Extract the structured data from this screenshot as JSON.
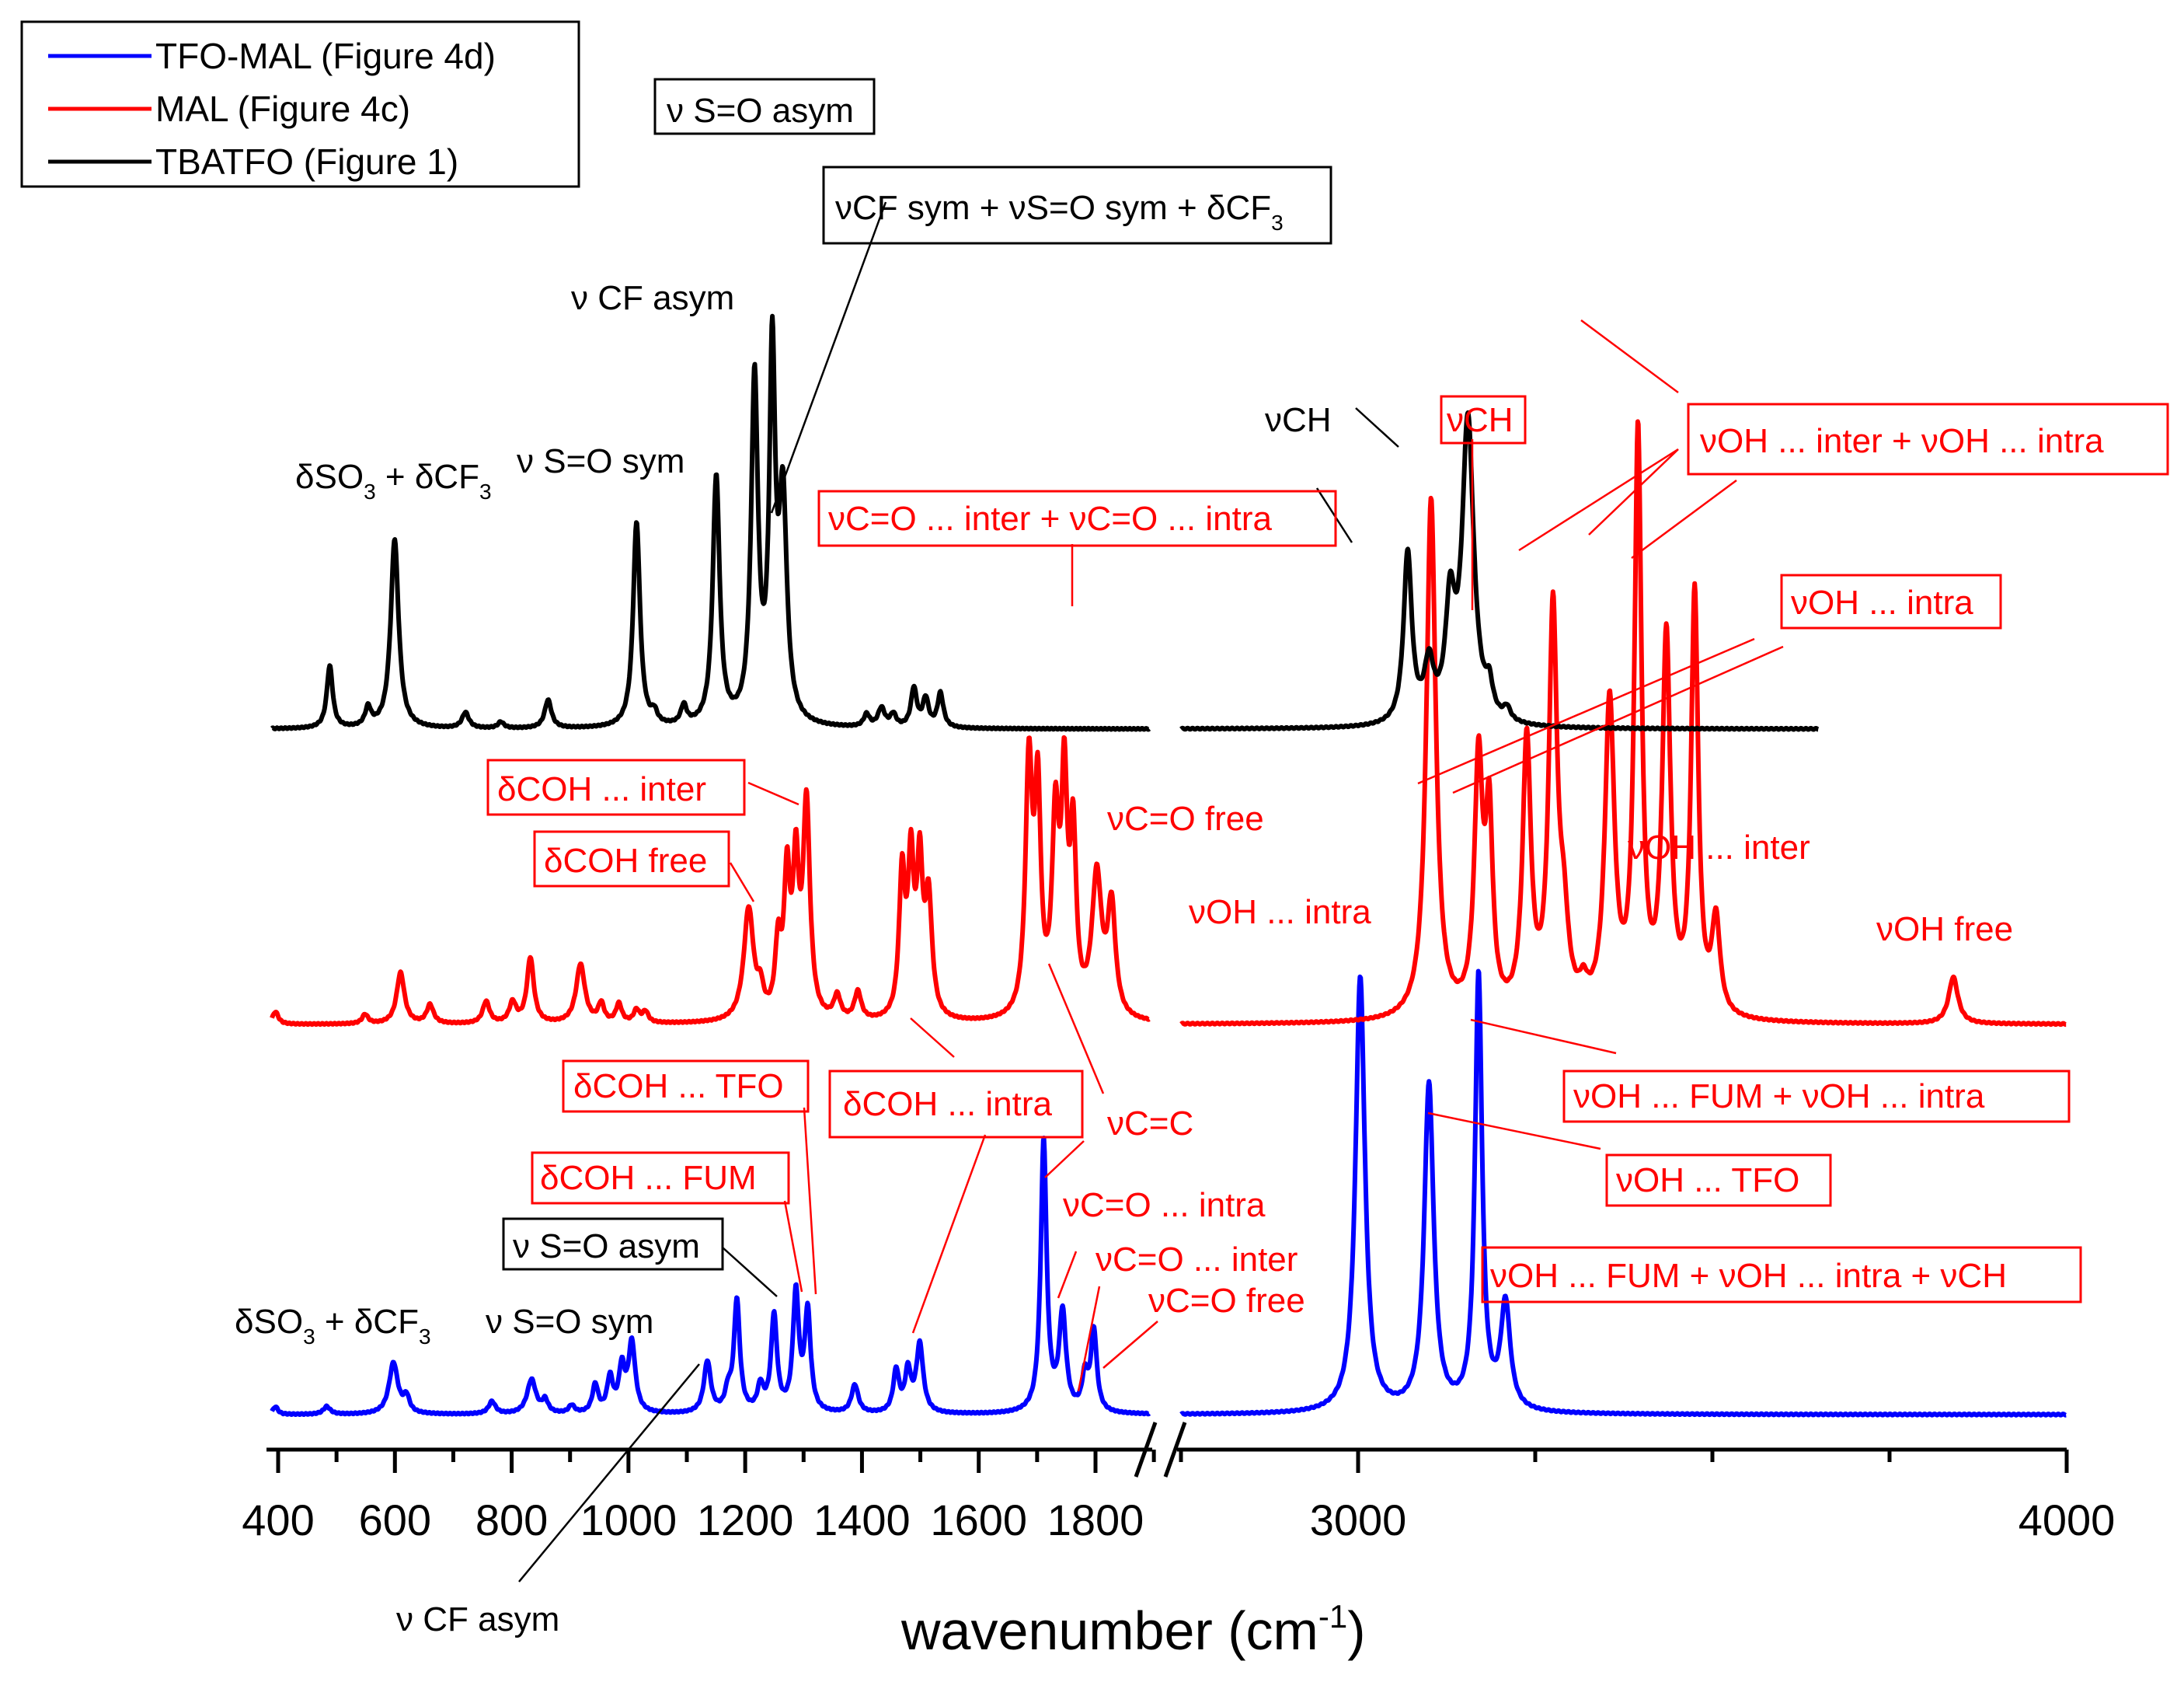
{
  "chart_data": {
    "type": "line",
    "title": "",
    "xlabel": "wavenumber (cm",
    "xlabel_sup": "-1",
    "xlabel_close": ")",
    "ylabel": "",
    "x_segments": [
      {
        "xlim": [
          400,
          1900
        ],
        "ticks": [
          400,
          600,
          800,
          1000,
          1200,
          1400,
          1600,
          1800
        ],
        "tick_labels": [
          "400",
          "600",
          "800",
          "1000",
          "1200",
          "1400",
          "1600",
          "1800"
        ]
      },
      {
        "xlim": [
          2750,
          4000
        ],
        "ticks": [
          3000,
          4000
        ],
        "tick_labels": [
          "3000",
          "4000"
        ]
      }
    ],
    "colors": {
      "TFO-MAL": "#0000ff",
      "MAL": "#ff0000",
      "TBATFO": "#000000"
    },
    "legend": [
      "TFO-MAL (Figure 4d)",
      "MAL (Figure 4c)",
      "TBATFO (Figure 1)"
    ],
    "series": [
      {
        "name": "TFO-MAL (Figure 4d)",
        "color": "#0000ff",
        "baseline": 0.0,
        "segments": [
          {
            "range": [
              412,
              1900
            ],
            "peaks": [
              [
                418,
                0.05,
                5
              ],
              [
                505,
                0.05,
                7
              ],
              [
                618,
                0.33,
                9
              ],
              [
                640,
                0.1,
                6
              ],
              [
                785,
                0.08,
                7
              ],
              [
                852,
                0.22,
                9
              ],
              [
                875,
                0.08,
                6
              ],
              [
                920,
                0.05,
                6
              ],
              [
                960,
                0.18,
                6
              ],
              [
                985,
                0.22,
                6
              ],
              [
                1005,
                0.28,
                6
              ],
              [
                1022,
                0.45,
                7
              ],
              [
                1150,
                0.33,
                7
              ],
              [
                1185,
                0.12,
                6
              ],
              [
                1200,
                0.72,
                6
              ],
              [
                1240,
                0.16,
                6
              ],
              [
                1263,
                0.62,
                6
              ],
              [
                1300,
                0.76,
                6
              ],
              [
                1320,
                0.64,
                6
              ],
              [
                1400,
                0.18,
                7
              ],
              [
                1470,
                0.27,
                6
              ],
              [
                1490,
                0.26,
                6
              ],
              [
                1510,
                0.44,
                7
              ],
              [
                1720,
                1.75,
                6
              ],
              [
                1752,
                0.63,
                7
              ],
              [
                1790,
                0.22,
                6
              ],
              [
                1805,
                0.52,
                6
              ]
            ]
          },
          {
            "range": [
              2750,
              4000
            ],
            "peaks": [
              [
                3003,
                2.8,
                8
              ],
              [
                3100,
                2.1,
                8
              ],
              [
                3170,
                2.8,
                6
              ],
              [
                3208,
                0.68,
                8
              ]
            ]
          }
        ]
      },
      {
        "name": "MAL (Figure 4c)",
        "color": "#ff0000",
        "baseline": 0.0,
        "segments": [
          {
            "range": [
              412,
              1900
            ],
            "peaks": [
              [
                418,
                0.08,
                6
              ],
              [
                570,
                0.06,
                6
              ],
              [
                630,
                0.33,
                8
              ],
              [
                680,
                0.12,
                7
              ],
              [
                775,
                0.14,
                7
              ],
              [
                820,
                0.13,
                7
              ],
              [
                850,
                0.42,
                7
              ],
              [
                935,
                0.38,
                9
              ],
              [
                970,
                0.12,
                6
              ],
              [
                1000,
                0.12,
                6
              ],
              [
                1030,
                0.08,
                6
              ],
              [
                1045,
                0.07,
                6
              ],
              [
                1220,
                0.72,
                10
              ],
              [
                1240,
                0.15,
                6
              ],
              [
                1270,
                0.45,
                6
              ],
              [
                1285,
                0.87,
                6
              ],
              [
                1300,
                0.92,
                6
              ],
              [
                1318,
                1.37,
                7
              ],
              [
                1370,
                0.15,
                7
              ],
              [
                1405,
                0.18,
                7
              ],
              [
                1480,
                0.9,
                6
              ],
              [
                1495,
                0.95,
                6
              ],
              [
                1510,
                0.92,
                6
              ],
              [
                1525,
                0.74,
                7
              ],
              [
                1695,
                1.6,
                7
              ],
              [
                1710,
                1.35,
                6
              ],
              [
                1740,
                1.2,
                7
              ],
              [
                1755,
                1.4,
                6
              ],
              [
                1770,
                1.1,
                6
              ],
              [
                1810,
                0.9,
                10
              ],
              [
                1835,
                0.7,
                8
              ]
            ]
          },
          {
            "range": [
              2750,
              4000
            ],
            "peaks": [
              [
                3103,
                3.35,
                8
              ],
              [
                3170,
                1.6,
                7
              ],
              [
                3185,
                1.2,
                6
              ],
              [
                3238,
                1.75,
                7
              ],
              [
                3275,
                2.55,
                7
              ],
              [
                3290,
                0.5,
                8
              ],
              [
                3318,
                0.13,
                7
              ],
              [
                3355,
                2.0,
                8
              ],
              [
                3395,
                3.7,
                6
              ],
              [
                3435,
                2.4,
                7
              ],
              [
                3475,
                2.7,
                6
              ],
              [
                3505,
                0.6,
                7
              ],
              [
                3840,
                0.3,
                8
              ]
            ]
          }
        ]
      },
      {
        "name": "TBATFO (Figure 1)",
        "color": "#000000",
        "baseline": 0.0,
        "segments": [
          {
            "range": [
              412,
              1900
            ],
            "peaks": [
              [
                510,
                0.4,
                6
              ],
              [
                575,
                0.12,
                6
              ],
              [
                620,
                1.22,
                8
              ],
              [
                740,
                0.1,
                7
              ],
              [
                800,
                0.04,
                6
              ],
              [
                880,
                0.18,
                7
              ],
              [
                1030,
                1.32,
                7
              ],
              [
                1060,
                0.07,
                6
              ],
              [
                1110,
                0.12,
                6
              ],
              [
                1165,
                1.6,
                7
              ],
              [
                1230,
                2.2,
                7
              ],
              [
                1260,
                2.3,
                6
              ],
              [
                1278,
                1.4,
                8
              ],
              [
                1420,
                0.08,
                6
              ],
              [
                1445,
                0.12,
                7
              ],
              [
                1465,
                0.08,
                6
              ],
              [
                1500,
                0.25,
                6
              ],
              [
                1520,
                0.18,
                6
              ],
              [
                1545,
                0.22,
                6
              ]
            ]
          },
          {
            "range": [
              2750,
              3650
            ],
            "peaks": [
              [
                3070,
                1.1,
                7
              ],
              [
                3100,
                0.35,
                8
              ],
              [
                3130,
                0.7,
                8
              ],
              [
                3155,
                1.95,
                10
              ],
              [
                3185,
                0.18,
                6
              ],
              [
                3210,
                0.08,
                6
              ]
            ]
          }
        ]
      }
    ],
    "annotations": {
      "black": [
        "ν S=O asym",
        "νCF sym + νS=O sym + δCF",
        "ν CF asym",
        "νCH",
        "ν S=O sym",
        "δSO",
        "δSO",
        "ν S=O sym",
        "ν S=O asym",
        "ν CF asym"
      ],
      "red": [
        "νCH",
        "νOH ... inter + νOH ... intra",
        "νC=O ... inter + νC=O ... intra",
        "νOH ... intra",
        "δCOH ... inter",
        "δCOH free",
        "νC=O free",
        "νOH ... inter",
        "νOH ... intra",
        "νOH free",
        "δCOH ... TFO",
        "δCOH ... intra",
        "νC=C",
        "νOH ... FUM + νOH ... intra",
        "νOH ... TFO",
        "δCOH ... FUM",
        "νC=O ... intra",
        "νC=O ... inter",
        "νC=O free",
        "νOH ... FUM + νOH ... intra + νCH"
      ]
    },
    "subscripts": {
      "three": "3"
    },
    "plus_sign": " + ",
    "cf_text": "δCF"
  }
}
